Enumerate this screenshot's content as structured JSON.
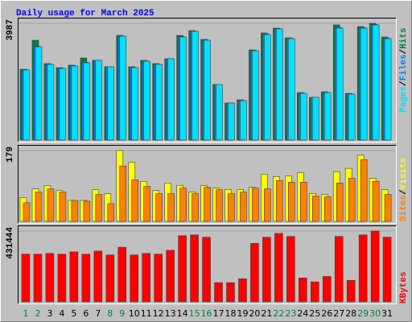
{
  "chart_data": [
    {
      "type": "bar",
      "title": "Daily usage for March 2025",
      "ylim": [
        0,
        3987
      ],
      "yticks": [
        3987
      ],
      "separator": "/",
      "series": [
        {
          "name": "Pages",
          "color": "#00E0FF",
          "values": [
            2393,
            3190,
            2585,
            2448,
            2530,
            2640,
            2723,
            2503,
            3548,
            2475,
            2695,
            2585,
            2778,
            3520,
            3713,
            3410,
            1898,
            1265,
            1348,
            3053,
            3603,
            3795,
            3465,
            1595,
            1458,
            1623,
            3823,
            1568,
            3823,
            3933,
            3465
          ]
        },
        {
          "name": "Files",
          "color": "#0080FF",
          "values": [
            2400,
            3205,
            2592,
            2455,
            2537,
            2660,
            2723,
            2503,
            3555,
            2482,
            2702,
            2592,
            2778,
            3530,
            3720,
            3420,
            1898,
            1265,
            1355,
            3060,
            3615,
            3805,
            3475,
            1600,
            1458,
            1630,
            3850,
            1575,
            3840,
            3950,
            3480
          ]
        },
        {
          "name": "Hits",
          "color": "#008040",
          "values": [
            2420,
            3410,
            2613,
            2475,
            2558,
            2805,
            2723,
            2503,
            3575,
            2503,
            2723,
            2613,
            2778,
            3575,
            3740,
            3438,
            1898,
            1265,
            1375,
            3080,
            3658,
            3823,
            3493,
            1623,
            1458,
            1650,
            3933,
            1595,
            3878,
            3987,
            3520
          ]
        }
      ]
    },
    {
      "type": "bar",
      "ylim": [
        0,
        179
      ],
      "yticks": [
        179
      ],
      "separator": "/",
      "series": [
        {
          "name": "Sites",
          "color": "#FF8000",
          "values": [
            47,
            74,
            82,
            74,
            53,
            51,
            68,
            45,
            140,
            105,
            88,
            70,
            70,
            84,
            70,
            86,
            80,
            70,
            74,
            84,
            82,
            103,
            99,
            99,
            64,
            62,
            97,
            109,
            156,
            101,
            68
          ]
        },
        {
          "name": "Visits",
          "color": "#FFFF00",
          "values": [
            60,
            82,
            90,
            78,
            53,
            53,
            80,
            70,
            179,
            150,
            101,
            78,
            97,
            91,
            74,
            90,
            84,
            80,
            80,
            86,
            119,
            113,
            115,
            123,
            70,
            68,
            125,
            134,
            167,
            109,
            80
          ]
        }
      ]
    },
    {
      "type": "bar",
      "ylim": [
        0,
        431444
      ],
      "yticks": [
        431444
      ],
      "categories": [
        "1",
        "2",
        "3",
        "4",
        "5",
        "6",
        "7",
        "8",
        "9",
        "10",
        "11",
        "12",
        "13",
        "14",
        "15",
        "16",
        "17",
        "18",
        "19",
        "20",
        "21",
        "22",
        "23",
        "24",
        "25",
        "26",
        "27",
        "28",
        "29",
        "30",
        "31"
      ],
      "category_colors": [
        "#008040",
        "#008040",
        "#000000",
        "#000000",
        "#000000",
        "#000000",
        "#000000",
        "#008040",
        "#008040",
        "#000000",
        "#000000",
        "#000000",
        "#000000",
        "#000000",
        "#008040",
        "#008040",
        "#000000",
        "#000000",
        "#000000",
        "#000000",
        "#000000",
        "#008040",
        "#008040",
        "#000000",
        "#000000",
        "#000000",
        "#000000",
        "#000000",
        "#008040",
        "#008040",
        "#000000"
      ],
      "series": [
        {
          "name": "KBytes",
          "color": "#FF0000",
          "values": [
            290755,
            290755,
            295445,
            290755,
            304824,
            290755,
            309514,
            286066,
            332962,
            286066,
            295445,
            290755,
            314203,
            403306,
            408000,
            393926,
            117240,
            117240,
            140688,
            356410,
            393926,
            417374,
            398616,
            145378,
            121930,
            154757,
            398616,
            131309,
            408000,
            431444,
            393926
          ]
        }
      ]
    }
  ]
}
